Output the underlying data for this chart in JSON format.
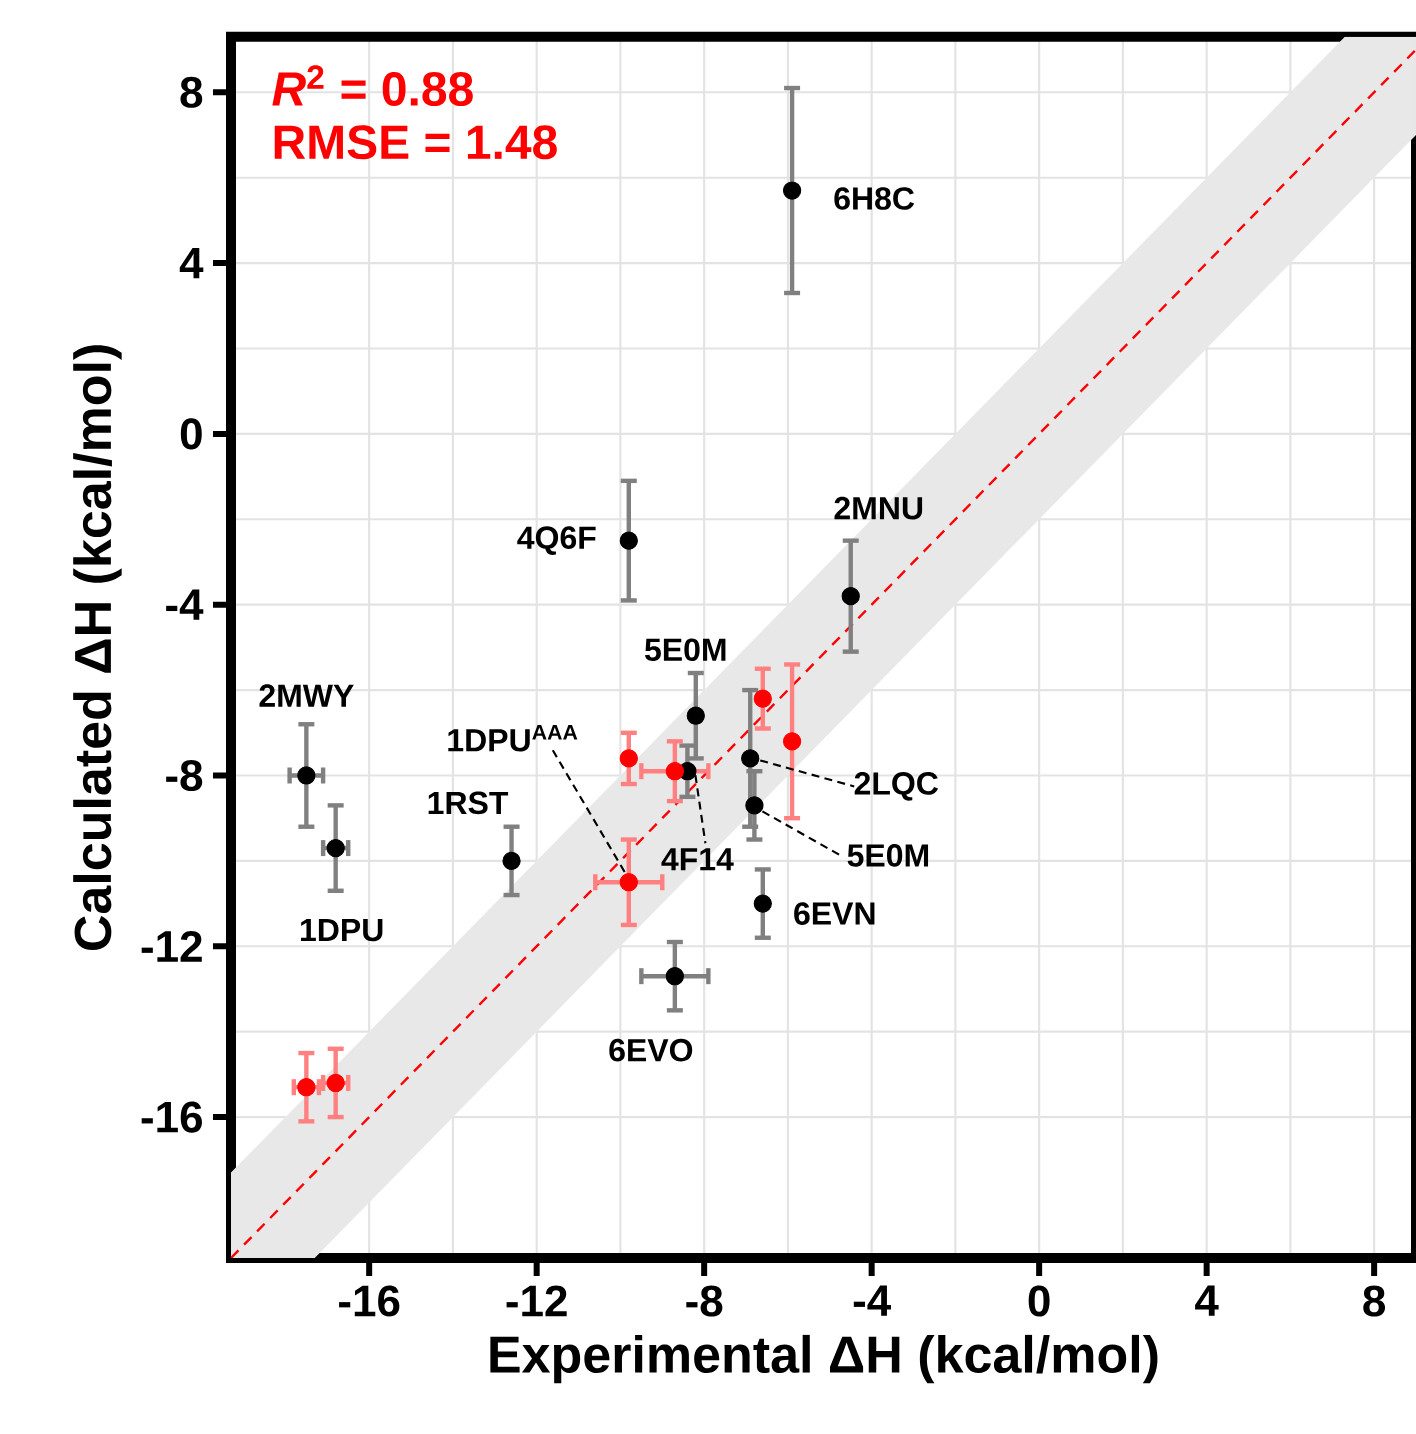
{
  "chart_data": {
    "type": "scatter",
    "xlabel": "Experimental ΔH (kcal/mol)",
    "ylabel": "Calculated ΔH (kcal/mol)",
    "xlim": [
      -19.3,
      9.0
    ],
    "ylim": [
      -19.3,
      9.3
    ],
    "xticks": [
      -16,
      -12,
      -8,
      -4,
      0,
      4,
      8
    ],
    "yticks": [
      -16,
      -12,
      -8,
      -4,
      0,
      4,
      8
    ],
    "grid": true,
    "series": [
      {
        "type": "line",
        "color": "#ff0000",
        "line_style": "dashed",
        "marker": "none",
        "x": [
          -19.3,
          -17.3,
          7.3,
          9.0
        ],
        "values": [
          -19.3,
          -17.3,
          7.3,
          9.0
        ],
        "lower": [
          -19.3,
          -19.3,
          5.3,
          7.0
        ],
        "upper": [
          -17.3,
          -15.3,
          9.3,
          9.3
        ]
      },
      {
        "color": "#000000",
        "x": [
          -5.9,
          -9.8,
          -4.5,
          -17.5,
          -16.8,
          -12.6,
          -8.7,
          -8.4,
          -8.2,
          -6.9,
          -6.8,
          -6.6
        ],
        "values": [
          5.7,
          -2.5,
          -3.8,
          -8.0,
          -9.7,
          -10.0,
          -12.7,
          -7.9,
          -6.6,
          -7.6,
          -8.7,
          -11.0
        ],
        "errors": [
          2.4,
          1.4,
          1.3,
          1.2,
          1.0,
          0.8,
          0.8,
          0.6,
          1.0,
          1.6,
          0.8,
          0.8
        ],
        "xerrors": [
          null,
          null,
          null,
          0.4,
          0.3,
          null,
          0.8,
          null,
          null,
          null,
          null,
          null
        ]
      },
      {
        "color": "#ff0000",
        "x": [
          -9.8,
          -9.8,
          -8.7,
          -6.6,
          -5.9,
          -17.5,
          -16.8
        ],
        "values": [
          -10.5,
          -7.6,
          -7.9,
          -6.2,
          -7.2,
          -15.3,
          -15.2
        ],
        "errors": [
          1.0,
          0.6,
          0.7,
          0.7,
          1.8,
          0.8,
          0.8
        ],
        "xerrors": [
          0.8,
          null,
          0.8,
          null,
          null,
          0.3,
          0.3
        ]
      }
    ],
    "annotations": [
      "*R*$^{2}$ = 0.88",
      "RMSE = 1.48",
      {
        "text": "6H8C",
        "x": -5.9,
        "y": 5.7
      },
      {
        "text": "4Q6F",
        "x": -9.8,
        "y": -2.5
      },
      {
        "text": "2MNU",
        "x": -4.5,
        "y": -3.8
      },
      {
        "text": "5E0M",
        "x": -8.2,
        "y": -6.6
      },
      {
        "text": "2MWY",
        "x": -17.5,
        "y": -8.0
      },
      {
        "text": "1DPU",
        "x": -16.8,
        "y": -9.7
      },
      {
        "text": "1RST",
        "x": -12.6,
        "y": -10.0
      },
      {
        "text": "1DPU$^{AAA}$",
        "x": -9.8,
        "y": -10.5
      },
      {
        "text": "4F14",
        "x": -8.4,
        "y": -7.9
      },
      {
        "text": "6EVO",
        "x": -8.7,
        "y": -12.7
      },
      {
        "text": "2LQC",
        "x": -6.9,
        "y": -7.6
      },
      {
        "text": "5E0M",
        "x": -6.8,
        "y": -8.7
      },
      {
        "text": "6EVN",
        "x": -6.6,
        "y": -11.0
      }
    ]
  }
}
